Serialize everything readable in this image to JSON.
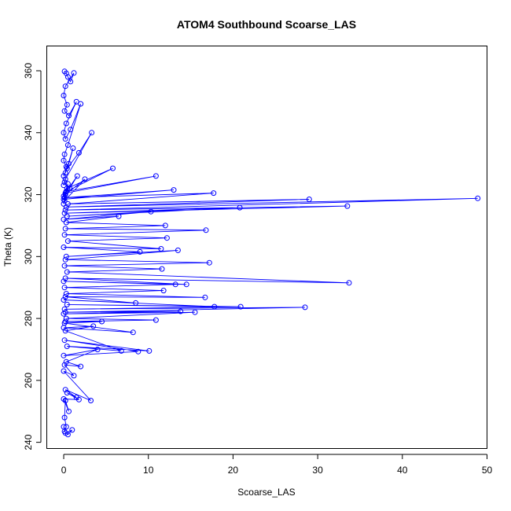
{
  "chart_data": {
    "type": "line",
    "title": "ATOM4 Southbound Scoarse_LAS",
    "xlabel": "Scoarse_LAS",
    "ylabel": "Theta (K)",
    "xlim": [
      -2,
      50
    ],
    "ylim": [
      238,
      368
    ],
    "xticks": [
      "0",
      "10",
      "20",
      "30",
      "40",
      "50"
    ],
    "yticks": [
      "240",
      "260",
      "280",
      "300",
      "320",
      "340",
      "360"
    ],
    "series_color": "#0000ff",
    "markers": "open-circle",
    "grid": false,
    "series": [
      {
        "x": [
          0.1,
          0.3,
          0.5,
          0.8,
          1.2,
          0.2,
          0.0,
          0.4,
          0.1,
          0.6,
          1.5,
          0.3,
          0.0,
          0.2,
          0.8,
          2.0,
          0.5,
          0.1,
          0.0,
          0.3,
          0.2,
          1.1,
          0.6,
          0.0,
          0.4,
          1.8,
          3.3,
          0.2,
          0.0,
          0.1,
          0.7,
          1.6,
          0.3,
          0.0,
          0.5,
          0.2,
          2.5,
          0.1,
          0.0,
          0.4,
          5.8,
          0.3,
          10.9,
          0.2,
          0.0,
          13.0,
          0.1,
          17.7,
          0.5,
          29.0,
          0.3,
          48.9,
          0.2,
          33.5,
          0.1,
          20.8,
          0.4,
          10.3,
          0.0,
          6.5,
          0.3,
          12.0,
          0.2,
          16.8,
          0.1,
          12.2,
          0.5,
          11.5,
          0.0,
          9.0,
          0.3,
          13.5,
          0.2,
          17.2,
          0.1,
          11.6,
          0.4,
          33.7,
          0.2,
          14.5,
          0.0,
          13.2,
          0.1,
          11.8,
          0.3,
          16.7,
          0.2,
          8.5,
          0.0,
          17.8,
          0.4,
          20.9,
          0.1,
          28.5,
          0.2,
          13.8,
          0.0,
          15.5,
          0.3,
          10.9,
          0.2,
          4.5,
          0.1,
          8.2,
          0.0,
          3.5,
          0.2,
          6.8,
          0.4,
          10.1,
          0.1,
          8.8,
          0.0,
          4.0,
          0.3,
          2.0,
          0.1,
          1.2,
          0.0,
          3.2,
          0.2,
          1.5,
          0.4,
          1.8,
          0.0,
          0.6,
          0.2,
          0.1,
          0.3,
          0.1,
          0.5,
          1.0,
          0.2,
          0.0
        ],
        "y": [
          359.8,
          359.2,
          358.0,
          356.5,
          359.3,
          355.0,
          352.0,
          349.0,
          347.0,
          345.5,
          350.0,
          343.0,
          340.0,
          338.0,
          341.0,
          349.3,
          336.0,
          333.0,
          331.0,
          329.0,
          327.0,
          335.0,
          330.0,
          326.0,
          328.5,
          333.5,
          340.0,
          325.0,
          323.0,
          324.0,
          322.0,
          326.0,
          321.0,
          319.5,
          323.5,
          320.0,
          325.0,
          318.0,
          317.0,
          322.0,
          328.5,
          321.0,
          326.0,
          320.5,
          318.5,
          321.5,
          319.0,
          320.5,
          317.0,
          318.5,
          316.0,
          318.8,
          315.0,
          316.3,
          314.0,
          315.8,
          313.0,
          314.5,
          312.0,
          313.0,
          311.0,
          310.0,
          309.0,
          308.5,
          307.0,
          306.0,
          305.0,
          302.5,
          303.0,
          301.5,
          300.0,
          302.0,
          299.0,
          298.0,
          297.0,
          296.0,
          295.0,
          291.5,
          293.0,
          291.0,
          292.0,
          291.0,
          290.0,
          289.0,
          288.0,
          286.8,
          287.0,
          285.0,
          286.0,
          283.8,
          284.5,
          283.8,
          283.0,
          283.6,
          282.0,
          282.3,
          281.5,
          282.0,
          280.0,
          279.5,
          279.0,
          279.0,
          278.5,
          275.5,
          277.0,
          277.5,
          276.0,
          269.5,
          271.0,
          269.5,
          273.0,
          269.3,
          268.0,
          270.0,
          266.0,
          264.5,
          265.0,
          261.5,
          263.0,
          253.5,
          257.0,
          254.5,
          256.0,
          253.8,
          254.0,
          250.0,
          253.5,
          248.0,
          245.0,
          243.5,
          242.5,
          244.0,
          243.0,
          245.0
        ]
      }
    ]
  }
}
